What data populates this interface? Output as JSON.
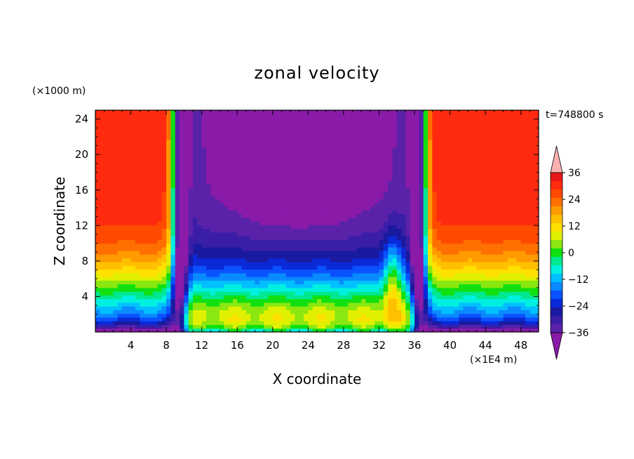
{
  "chart_data": {
    "type": "heatmap",
    "title": "zonal velocity",
    "xlabel": "X coordinate",
    "ylabel": "Z coordinate",
    "x_unit": "(×1E4 m)",
    "y_unit": "(×1000 m)",
    "time_label": "t=748800 s",
    "xlim": [
      0,
      50
    ],
    "ylim": [
      0,
      25
    ],
    "x_ticks": [
      4,
      8,
      12,
      16,
      20,
      24,
      28,
      32,
      36,
      40,
      44,
      48
    ],
    "y_ticks": [
      4,
      8,
      12,
      16,
      20,
      24
    ],
    "x_tick_labels": [
      "4",
      "8",
      "12",
      "16",
      "20",
      "24",
      "28",
      "32",
      "36",
      "40",
      "44",
      "48"
    ],
    "y_tick_labels": [
      "4",
      "8",
      "12",
      "16",
      "20",
      "24"
    ],
    "colorbar": {
      "levels": [
        -40,
        -36,
        -32,
        -28,
        -24,
        -20,
        -16,
        -12,
        -8,
        -4,
        0,
        4,
        8,
        12,
        16,
        20,
        24,
        28,
        32,
        36,
        40
      ],
      "tick_values": [
        36,
        24,
        12,
        0,
        -12,
        -24,
        -36
      ],
      "tick_labels": [
        "36",
        "24",
        "12",
        "0",
        "−12",
        "−24",
        "−36"
      ],
      "colors": [
        "#8a1aa8",
        "#5a22a8",
        "#3a1ea8",
        "#1a1aa0",
        "#0a2ad8",
        "#0a52ff",
        "#0a8aff",
        "#00c0ff",
        "#00f0e0",
        "#00e890",
        "#10e010",
        "#8ae810",
        "#e0f000",
        "#ffe000",
        "#ffc000",
        "#ff9a00",
        "#ff7000",
        "#ff4a00",
        "#ff2a10",
        "#e81818",
        "#ffb0b0"
      ]
    }
  }
}
